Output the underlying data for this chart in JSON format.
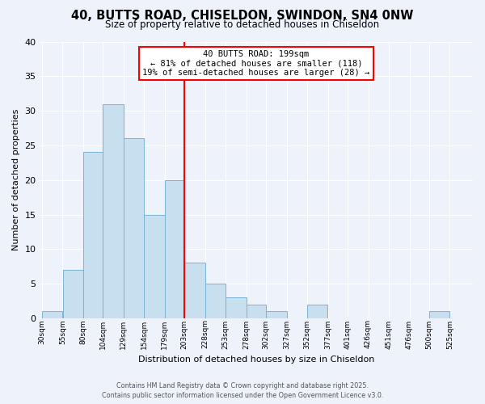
{
  "title": "40, BUTTS ROAD, CHISELDON, SWINDON, SN4 0NW",
  "subtitle": "Size of property relative to detached houses in Chiseldon",
  "xlabel": "Distribution of detached houses by size in Chiseldon",
  "ylabel": "Number of detached properties",
  "bin_labels": [
    "30sqm",
    "55sqm",
    "80sqm",
    "104sqm",
    "129sqm",
    "154sqm",
    "179sqm",
    "203sqm",
    "228sqm",
    "253sqm",
    "278sqm",
    "302sqm",
    "327sqm",
    "352sqm",
    "377sqm",
    "401sqm",
    "426sqm",
    "451sqm",
    "476sqm",
    "500sqm",
    "525sqm"
  ],
  "bin_edges": [
    30,
    55,
    80,
    104,
    129,
    154,
    179,
    203,
    228,
    253,
    278,
    302,
    327,
    352,
    377,
    401,
    426,
    451,
    476,
    500,
    525,
    550
  ],
  "bar_heights": [
    1,
    7,
    24,
    31,
    26,
    15,
    20,
    8,
    5,
    3,
    2,
    1,
    0,
    2,
    0,
    0,
    0,
    0,
    0,
    1,
    0
  ],
  "bar_color": "#c8dff0",
  "bar_edgecolor": "#7ab3d4",
  "vline_x": 203,
  "vline_color": "red",
  "annotation_title": "40 BUTTS ROAD: 199sqm",
  "annotation_line1": "← 81% of detached houses are smaller (118)",
  "annotation_line2": "19% of semi-detached houses are larger (28) →",
  "ylim": [
    0,
    40
  ],
  "yticks": [
    0,
    5,
    10,
    15,
    20,
    25,
    30,
    35,
    40
  ],
  "background_color": "#eef2fb",
  "grid_color": "#ffffff",
  "footer_line1": "Contains HM Land Registry data © Crown copyright and database right 2025.",
  "footer_line2": "Contains public sector information licensed under the Open Government Licence v3.0."
}
